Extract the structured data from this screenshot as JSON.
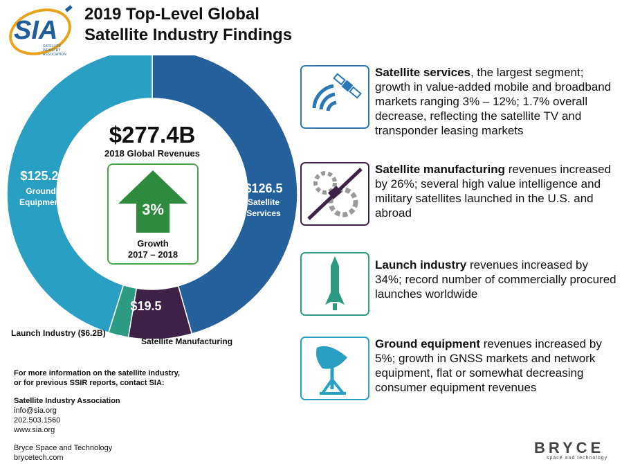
{
  "logo": {
    "text": "SIA",
    "sub_lines": [
      "SATELLITE",
      "INDUSTRY",
      "ASSOCIATION"
    ]
  },
  "title": {
    "line1": "2019 Top-Level Global",
    "line2": "Satellite Industry Findings"
  },
  "chart_data": {
    "type": "pie",
    "categories": [
      "Satellite Services",
      "Satellite Manufacturing",
      "Launch Industry",
      "Ground Equipment"
    ],
    "values": [
      126.5,
      19.5,
      6.2,
      125.2
    ],
    "colors": [
      "#24619c",
      "#3d2147",
      "#2d9b83",
      "#2a9fc4"
    ],
    "value_labels": [
      "$126.5",
      "$19.5",
      "",
      "$125.2"
    ],
    "segment_labels": [
      "Satellite Services",
      "",
      "",
      "Ground Equipment"
    ],
    "outside_labels": {
      "launch": "Launch Industry ($6.2B)",
      "manufacturing": "Satellite Manufacturing"
    },
    "center": {
      "total": "$277.4B",
      "subtitle": "2018 Global Revenues"
    },
    "growth": {
      "value": "3%",
      "line1": "Growth",
      "line2": "2017 – 2018"
    }
  },
  "contact": {
    "intro1": "For more information on the satellite industry,",
    "intro2": "or for previous SSIR reports, contact SIA:",
    "org": "Satellite Industry Association",
    "email": "info@sia.org",
    "phone": "202.503.1560",
    "web": "www.sia.org",
    "org2": "Bryce Space and Technology",
    "web2": "brycetech.com"
  },
  "findings": [
    {
      "icon": "satellite-signal-icon",
      "bold": "Satellite services",
      "text": ", the largest segment; growth in value-added mobile and broadband markets ranging 3% – 12%; 1.7% overall decrease, reflecting the satellite TV and transponder leasing markets"
    },
    {
      "icon": "satellite-gears-icon",
      "bold": "Satellite manufacturing",
      "text": " revenues increased by 26%; several high value intelligence and military satellites launched in the U.S. and abroad"
    },
    {
      "icon": "rocket-icon",
      "bold": "Launch industry",
      "text": " revenues increased by 34%; record number of commercially procured launches worldwide"
    },
    {
      "icon": "satellite-dish-icon",
      "bold": "Ground equipment",
      "text": " revenues increased by 5%; growth in GNSS markets and network equipment, flat or somewhat decreasing consumer equipment revenues"
    }
  ],
  "brand": {
    "name": "BRYCE",
    "tagline": "space and technology"
  },
  "colors": {
    "blue": "#24619c",
    "teal": "#2a9fc4",
    "purple": "#3d2147",
    "green": "#2d9b83",
    "arrow": "#2e8b3e"
  }
}
